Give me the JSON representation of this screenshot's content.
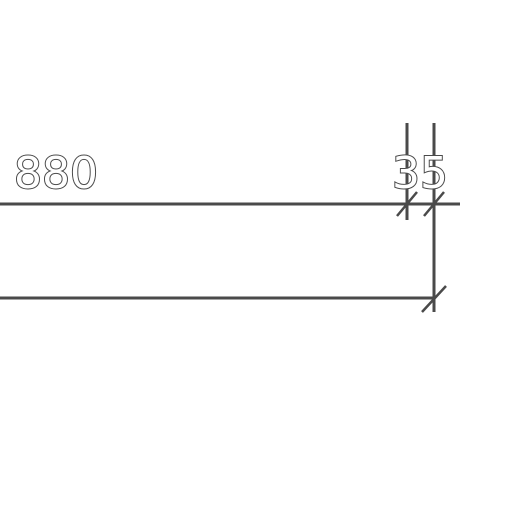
{
  "dimensions": {
    "main_label": "880",
    "small_label": "35"
  },
  "style": {
    "line_color": "#4a4a4a",
    "background": "#ffffff"
  }
}
